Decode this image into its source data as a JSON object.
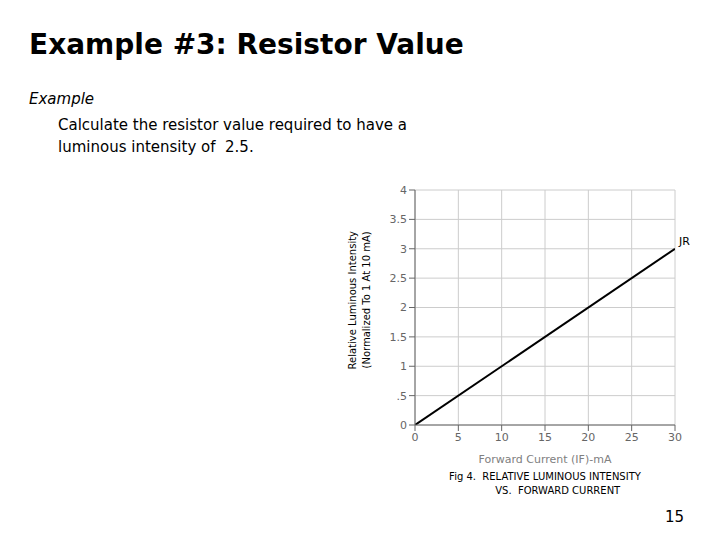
{
  "chart_data": {
    "type": "line",
    "title": "Example #3: Resistor Value",
    "subtitle": "Example",
    "body": [
      "Calculate the resistor value required to have a",
      "luminous intensity of  2.5."
    ],
    "page_number": "15",
    "caption": [
      "Fig 4.  RELATIVE LUMINOUS INTENSITY",
      "        VS.  FORWARD CURRENT"
    ],
    "xlabel": "Forward Current (IF)-mA",
    "ylabel": [
      "Relative Luminous Intensity",
      "(Normalized To 1 At 10 mA)"
    ],
    "x": [
      0,
      30
    ],
    "series": [
      {
        "name": "JR",
        "color": "#000000",
        "values": [
          0,
          3.0
        ]
      }
    ],
    "xlim": [
      0,
      30
    ],
    "ylim": [
      0,
      4
    ],
    "xticks": [
      0,
      5,
      10,
      15,
      20,
      25,
      30
    ],
    "yticks": [
      0,
      {
        "value": 0.5,
        "label": ".5"
      },
      1,
      1.5,
      2,
      2.5,
      3,
      3.5,
      4
    ],
    "grid": true
  }
}
